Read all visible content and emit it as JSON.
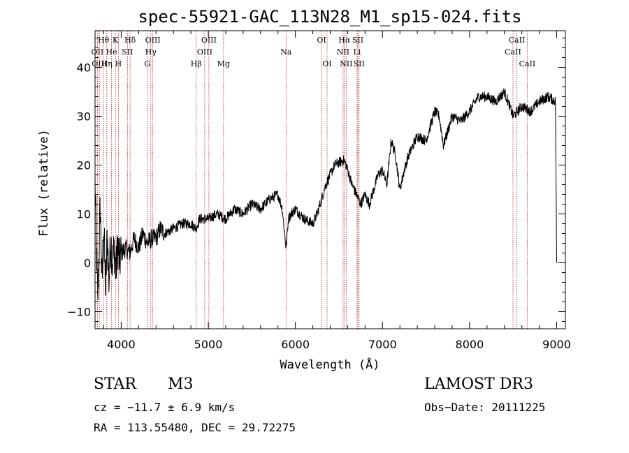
{
  "chart_data": {
    "type": "line",
    "title": "spec-55921-GAC_113N28_M1_sp15-024.fits",
    "xlabel": "Wavelength (Å)",
    "ylabel": "Flux (relative)",
    "xlim": [
      3700,
      9100
    ],
    "ylim": [
      -13.5,
      47.5
    ],
    "xticks": [
      4000,
      5000,
      6000,
      7000,
      8000,
      9000
    ],
    "yticks": [
      -10,
      0,
      10,
      20,
      30,
      40
    ],
    "series": [
      {
        "name": "flux",
        "x": [
          3700,
          3730,
          3760,
          3780,
          3800,
          3820,
          3840,
          3860,
          3880,
          3900,
          3920,
          3940,
          3960,
          3980,
          4000,
          4050,
          4100,
          4150,
          4200,
          4250,
          4300,
          4350,
          4400,
          4450,
          4500,
          4600,
          4700,
          4800,
          4860,
          4900,
          5000,
          5100,
          5200,
          5300,
          5400,
          5500,
          5600,
          5700,
          5800,
          5850,
          5893,
          5920,
          5950,
          6000,
          6100,
          6200,
          6250,
          6300,
          6350,
          6400,
          6450,
          6500,
          6560,
          6600,
          6650,
          6700,
          6750,
          6800,
          6850,
          6900,
          6950,
          7000,
          7050,
          7100,
          7150,
          7200,
          7250,
          7300,
          7400,
          7500,
          7600,
          7650,
          7700,
          7750,
          7800,
          7900,
          8000,
          8100,
          8200,
          8300,
          8400,
          8500,
          8600,
          8700,
          8800,
          8900,
          8990,
          9000
        ],
        "values": [
          16,
          -8,
          12,
          -5,
          8,
          -6,
          6,
          -4,
          5,
          0,
          3,
          -2,
          4,
          0,
          2,
          3,
          2,
          5,
          3,
          6,
          4,
          5,
          5,
          7,
          6,
          7,
          8,
          8,
          7,
          9,
          9,
          10,
          9,
          11,
          10,
          12,
          11,
          13,
          14,
          11,
          3,
          9,
          10,
          11,
          9,
          8,
          10,
          13,
          16,
          18,
          20,
          20.5,
          21,
          19,
          16,
          14,
          12,
          14,
          12,
          15,
          18,
          19,
          16,
          25,
          22,
          15,
          19,
          22,
          26,
          25,
          31,
          30,
          24,
          27,
          30,
          29,
          31,
          34,
          34,
          33,
          35,
          30,
          32,
          31,
          33,
          34,
          33,
          0
        ]
      }
    ],
    "lines": [
      {
        "label": "Hθ",
        "x": 3797,
        "row": 1
      },
      {
        "label": "K",
        "x": 3934,
        "row": 1
      },
      {
        "label": "Hδ",
        "x": 4102,
        "row": 1
      },
      {
        "label": "OIII",
        "x": 4363,
        "row": 1
      },
      {
        "label": "OIII",
        "x": 5007,
        "row": 1
      },
      {
        "label": "OI",
        "x": 6300,
        "row": 1
      },
      {
        "label": "Hα",
        "x": 6563,
        "row": 1
      },
      {
        "label": "SII",
        "x": 6717,
        "row": 1
      },
      {
        "label": "CaII",
        "x": 8542,
        "row": 1
      },
      {
        "label": "OII",
        "x": 3727,
        "row": 2
      },
      {
        "label": "He",
        "x": 3889,
        "row": 2
      },
      {
        "label": "SII",
        "x": 4072,
        "row": 2
      },
      {
        "label": "Hγ",
        "x": 4340,
        "row": 2
      },
      {
        "label": "OIII",
        "x": 4959,
        "row": 2
      },
      {
        "label": "Na",
        "x": 5893,
        "row": 2
      },
      {
        "label": "NII",
        "x": 6548,
        "row": 2
      },
      {
        "label": "Li",
        "x": 6708,
        "row": 2
      },
      {
        "label": "CaII",
        "x": 8498,
        "row": 2
      },
      {
        "label": "OIII",
        "x": 3750,
        "row": 3
      },
      {
        "label": "Hη",
        "x": 3835,
        "row": 3
      },
      {
        "label": "H",
        "x": 3968,
        "row": 3
      },
      {
        "label": "G",
        "x": 4300,
        "row": 3
      },
      {
        "label": "Hβ",
        "x": 4861,
        "row": 3
      },
      {
        "label": "Mg",
        "x": 5175,
        "row": 3
      },
      {
        "label": "OI",
        "x": 6364,
        "row": 3
      },
      {
        "label": "NII",
        "x": 6583,
        "row": 3
      },
      {
        "label": "SII",
        "x": 6731,
        "row": 3
      },
      {
        "label": "CaII",
        "x": 8662,
        "row": 3
      }
    ]
  },
  "info": {
    "object_class": "STAR",
    "subclass": "M3",
    "survey": "LAMOST DR3",
    "redshift": "cz = −11.7 ± 6.9 km/s",
    "obs_date": "Obs−Date: 20111225",
    "coords": "RA = 113.55480, DEC =  29.72275"
  },
  "colors": {
    "line_marker": "#b22222",
    "spectrum": "#000000"
  }
}
